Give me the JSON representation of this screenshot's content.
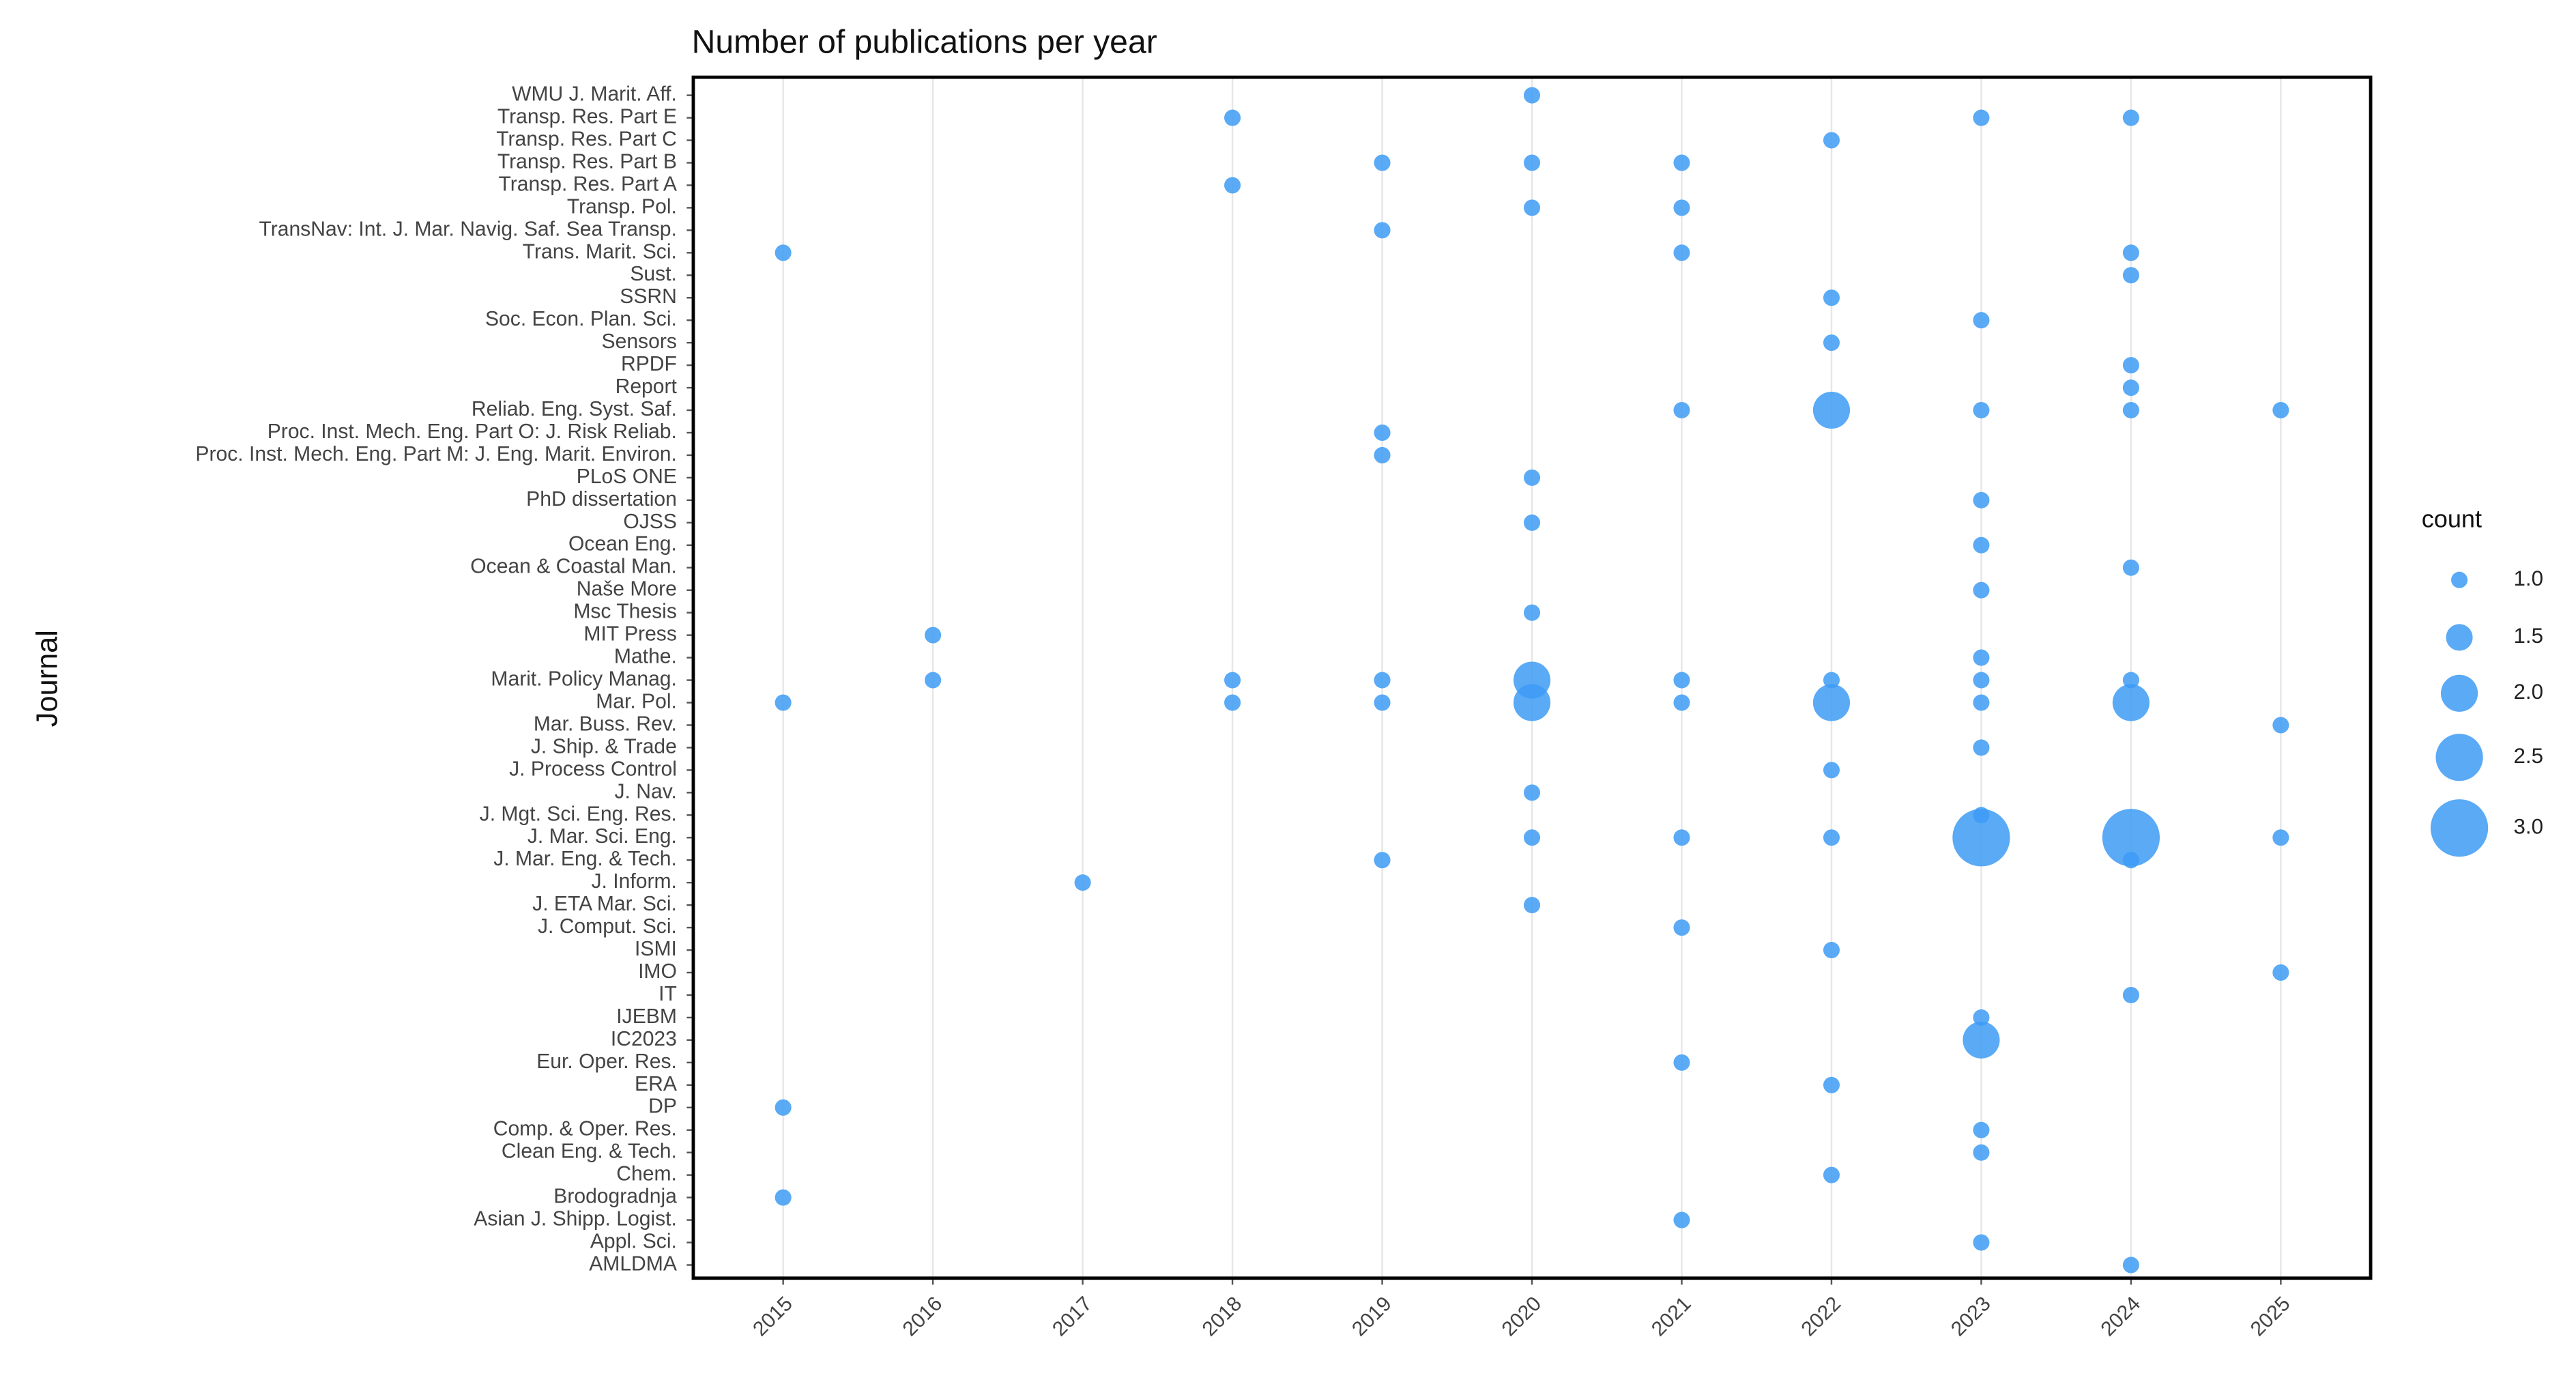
{
  "chart_data": {
    "type": "scatter",
    "title": "Number of publications per year",
    "y_label": "Journal",
    "legend_title": "count",
    "legend_sizes": [
      {
        "value": 1,
        "label": "1.0"
      },
      {
        "value": 1.5,
        "label": "1.5"
      },
      {
        "value": 2,
        "label": "2.0"
      },
      {
        "value": 2.5,
        "label": "2.5"
      },
      {
        "value": 3,
        "label": "3.0"
      }
    ],
    "categories": [
      "WMU J. Marit. Aff.",
      "Transp. Res. Part E",
      "Transp. Res. Part C",
      "Transp. Res. Part B",
      "Transp. Res. Part A",
      "Transp. Pol.",
      "TransNav: Int. J. Mar. Navig. Saf. Sea Transp.",
      "Trans. Marit. Sci.",
      "Sust.",
      "SSRN",
      "Soc. Econ. Plan. Sci.",
      "Sensors",
      "RPDF",
      "Report",
      "Reliab. Eng. Syst. Saf.",
      "Proc. Inst. Mech. Eng. Part O: J. Risk Reliab.",
      "Proc. Inst. Mech. Eng. Part M: J. Eng. Marit. Environ.",
      "PLoS ONE",
      "PhD dissertation",
      "OJSS",
      "Ocean Eng.",
      "Ocean & Coastal Man.",
      "Naše More",
      "Msc Thesis",
      "MIT Press",
      "Mathe.",
      "Marit. Policy Manag.",
      "Mar. Pol.",
      "Mar. Buss. Rev.",
      "J. Ship. & Trade",
      "J. Process Control",
      "J. Nav.",
      "J. Mgt. Sci. Eng. Res.",
      "J. Mar. Sci. Eng.",
      "J. Mar. Eng. & Tech.",
      "J. Inform.",
      "J. ETA Mar. Sci.",
      "J. Comput. Sci.",
      "ISMI",
      "IMO",
      "IT",
      "IJEBM",
      "IC2023",
      "Eur. Oper. Res.",
      "ERA",
      "DP",
      "Comp. & Oper. Res.",
      "Clean Eng. & Tech.",
      "Chem.",
      "Brodogradnja",
      "Asian J. Shipp. Logist.",
      "Appl. Sci.",
      "AMLDMA"
    ],
    "xlim": [
      2014.4,
      2025.6
    ],
    "xticks": [
      2015,
      2016,
      2017,
      2018,
      2019,
      2020,
      2021,
      2022,
      2023,
      2024,
      2025
    ],
    "grid": true,
    "series": [
      {
        "color": "#3d9bf5",
        "x": [
          2020,
          2018,
          2023,
          2024,
          2022,
          2019,
          2020,
          2021,
          2018,
          2020,
          2021,
          2019,
          2015,
          2021,
          2024,
          2024,
          2022,
          2023,
          2022,
          2024,
          2024,
          2021,
          2022,
          2023,
          2024,
          2025,
          2019,
          2019,
          2020,
          2023,
          2020,
          2023,
          2024,
          2023,
          2020,
          2016,
          2023,
          2016,
          2018,
          2019,
          2020,
          2021,
          2022,
          2023,
          2024,
          2015,
          2018,
          2019,
          2020,
          2021,
          2022,
          2023,
          2024,
          2025,
          2023,
          2022,
          2020,
          2023,
          2020,
          2021,
          2022,
          2023,
          2024,
          2025,
          2019,
          2024,
          2017,
          2020,
          2021,
          2022,
          2025,
          2024,
          2023,
          2023,
          2021,
          2022,
          2015,
          2023,
          2023,
          2022,
          2015,
          2021,
          2023,
          2024
        ],
        "y": [
          "WMU J. Marit. Aff.",
          "Transp. Res. Part E",
          "Transp. Res. Part E",
          "Transp. Res. Part E",
          "Transp. Res. Part C",
          "Transp. Res. Part B",
          "Transp. Res. Part B",
          "Transp. Res. Part B",
          "Transp. Res. Part A",
          "Transp. Pol.",
          "Transp. Pol.",
          "TransNav: Int. J. Mar. Navig. Saf. Sea Transp.",
          "Trans. Marit. Sci.",
          "Trans. Marit. Sci.",
          "Trans. Marit. Sci.",
          "Sust.",
          "SSRN",
          "Soc. Econ. Plan. Sci.",
          "Sensors",
          "RPDF",
          "Report",
          "Reliab. Eng. Syst. Saf.",
          "Reliab. Eng. Syst. Saf.",
          "Reliab. Eng. Syst. Saf.",
          "Reliab. Eng. Syst. Saf.",
          "Reliab. Eng. Syst. Saf.",
          "Proc. Inst. Mech. Eng. Part O: J. Risk Reliab.",
          "Proc. Inst. Mech. Eng. Part M: J. Eng. Marit. Environ.",
          "PLoS ONE",
          "PhD dissertation",
          "OJSS",
          "Ocean Eng.",
          "Ocean & Coastal Man.",
          "Naše More",
          "Msc Thesis",
          "MIT Press",
          "Mathe.",
          "Marit. Policy Manag.",
          "Marit. Policy Manag.",
          "Marit. Policy Manag.",
          "Marit. Policy Manag.",
          "Marit. Policy Manag.",
          "Marit. Policy Manag.",
          "Marit. Policy Manag.",
          "Marit. Policy Manag.",
          "Mar. Pol.",
          "Mar. Pol.",
          "Mar. Pol.",
          "Mar. Pol.",
          "Mar. Pol.",
          "Mar. Pol.",
          "Mar. Pol.",
          "Mar. Pol.",
          "Mar. Buss. Rev.",
          "J. Ship. & Trade",
          "J. Process Control",
          "J. Nav.",
          "J. Mgt. Sci. Eng. Res.",
          "J. Mar. Sci. Eng.",
          "J. Mar. Sci. Eng.",
          "J. Mar. Sci. Eng.",
          "J. Mar. Sci. Eng.",
          "J. Mar. Sci. Eng.",
          "J. Mar. Sci. Eng.",
          "J. Mar. Eng. & Tech.",
          "J. Mar. Eng. & Tech.",
          "J. Inform.",
          "J. ETA Mar. Sci.",
          "J. Comput. Sci.",
          "ISMI",
          "IMO",
          "IT",
          "IJEBM",
          "IC2023",
          "Eur. Oper. Res.",
          "ERA",
          "DP",
          "Comp. & Oper. Res.",
          "Clean Eng. & Tech.",
          "Chem.",
          "Brodogradnja",
          "Asian J. Shipp. Logist.",
          "Appl. Sci.",
          "AMLDMA"
        ],
        "size": [
          1,
          1,
          1,
          1,
          1,
          1,
          1,
          1,
          1,
          1,
          1,
          1,
          1,
          1,
          1,
          1,
          1,
          1,
          1,
          1,
          1,
          1,
          2,
          1,
          1,
          1,
          1,
          1,
          1,
          1,
          1,
          1,
          1,
          1,
          1,
          1,
          1,
          1,
          1,
          1,
          2,
          1,
          1,
          1,
          1,
          1,
          1,
          1,
          2,
          1,
          2,
          1,
          2,
          1,
          1,
          1,
          1,
          1,
          1,
          1,
          1,
          3,
          3,
          1,
          1,
          1,
          1,
          1,
          1,
          1,
          1,
          1,
          1,
          2,
          1,
          1,
          1,
          1,
          1,
          1,
          1,
          1,
          1,
          1
        ]
      }
    ]
  }
}
